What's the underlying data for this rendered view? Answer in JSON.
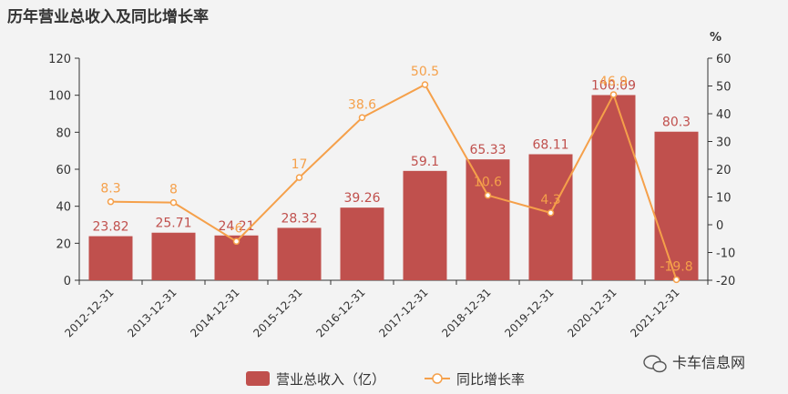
{
  "chart_data": {
    "type": "bar",
    "title": "历年营业总收入及同比增长率",
    "categories": [
      "2012-12-31",
      "2013-12-31",
      "2014-12-31",
      "2015-12-31",
      "2016-12-31",
      "2017-12-31",
      "2018-12-31",
      "2019-12-31",
      "2020-12-31",
      "2021-12-31"
    ],
    "series": [
      {
        "name": "营业总收入（亿）",
        "type": "bar",
        "axis": "left",
        "color": "#c0504d",
        "values": [
          23.82,
          25.71,
          24.21,
          28.32,
          39.26,
          59.1,
          65.33,
          68.11,
          100.09,
          80.3
        ]
      },
      {
        "name": "同比增长率",
        "type": "line",
        "axis": "right",
        "color": "#f5a04a",
        "values": [
          8.3,
          8,
          -6,
          17,
          38.6,
          50.5,
          10.6,
          4.3,
          46.9,
          -19.8
        ],
        "labels": [
          "8.3",
          "8",
          "-6",
          "17",
          "38.6",
          "50.5",
          "10.6",
          "4.3",
          "46.9",
          "-19.8"
        ]
      }
    ],
    "y_left": {
      "ylim": [
        0,
        120
      ],
      "ticks": [
        0,
        20,
        40,
        60,
        80,
        100,
        120
      ]
    },
    "y_right": {
      "label": "%",
      "ylim": [
        -20,
        60
      ],
      "ticks": [
        -20,
        -10,
        0,
        10,
        20,
        30,
        40,
        50,
        60
      ]
    },
    "grid": false,
    "legend": "bottom-center"
  },
  "watermark": {
    "text": "卡车信息网",
    "icon": "wechat-icon"
  }
}
